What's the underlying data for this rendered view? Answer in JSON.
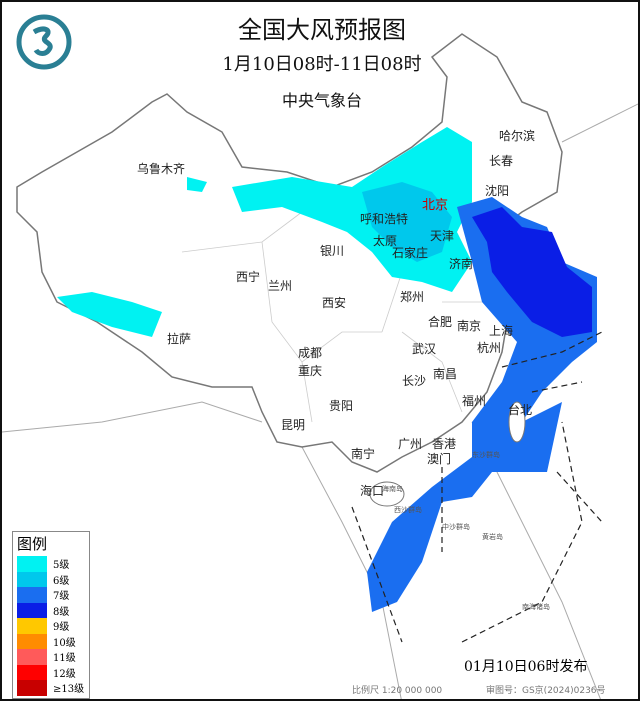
{
  "header": {
    "title": "全国大风预报图",
    "period": "1月10日08时-11日08时",
    "agency": "中央气象台"
  },
  "logo": {
    "name": "cma-logo",
    "color": "#2a7f94"
  },
  "cities": [
    "乌鲁木齐",
    "哈尔滨",
    "长春",
    "沈阳",
    "北京",
    "呼和浩特",
    "天津",
    "太原",
    "石家庄",
    "银川",
    "济南",
    "西宁",
    "兰州",
    "郑州",
    "西安",
    "合肥",
    "南京",
    "上海",
    "拉萨",
    "成都",
    "武汉",
    "杭州",
    "重庆",
    "长沙",
    "南昌",
    "福州",
    "台北",
    "贵阳",
    "昆明",
    "广州",
    "香港",
    "南宁",
    "澳门",
    "海口"
  ],
  "islands": [
    "东沙群岛",
    "海南岛",
    "西沙群岛",
    "中沙群岛",
    "黄岩岛",
    "南海诸岛"
  ],
  "legend": {
    "title": "图例",
    "items": [
      {
        "label": "5级",
        "color": "#00f2f2"
      },
      {
        "label": "6级",
        "color": "#00c8ec"
      },
      {
        "label": "7级",
        "color": "#1a6ef0"
      },
      {
        "label": "8级",
        "color": "#0a1ee6"
      },
      {
        "label": "9级",
        "color": "#ffc800"
      },
      {
        "label": "10级",
        "color": "#ff8c00"
      },
      {
        "label": "11级",
        "color": "#ff5a5a"
      },
      {
        "label": "12级",
        "color": "#ff0000"
      },
      {
        "label": "≥13级",
        "color": "#c80000"
      }
    ]
  },
  "footer": {
    "issued": "01月10日06时发布",
    "scale": "比例尺 1:20 000 000",
    "review": "审图号：GS京(2024)0236号"
  }
}
